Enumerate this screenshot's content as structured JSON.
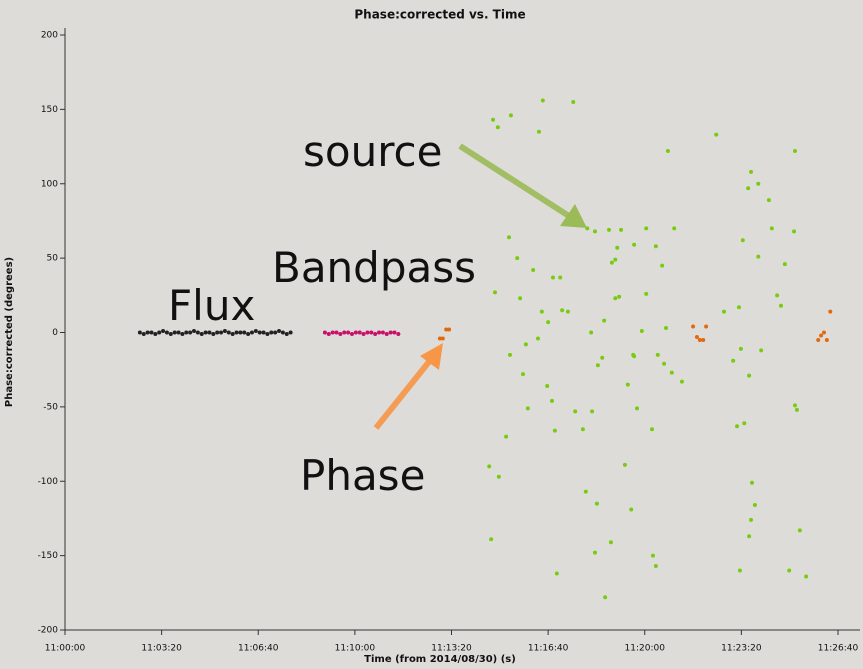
{
  "chart_data": {
    "type": "scatter",
    "title": "Phase:corrected vs. Time",
    "x_label": "Time (from 2014/08/30) (s)",
    "y_label": "Phase:corrected (degrees)",
    "xlim": [
      0,
      1600
    ],
    "ylim": [
      -200,
      200
    ],
    "xticks": [
      {
        "value": 0,
        "label": "11:00:00"
      },
      {
        "value": 200,
        "label": "11:03:20"
      },
      {
        "value": 400,
        "label": "11:06:40"
      },
      {
        "value": 600,
        "label": "11:10:00"
      },
      {
        "value": 800,
        "label": "11:13:20"
      },
      {
        "value": 1000,
        "label": "11:16:40"
      },
      {
        "value": 1200,
        "label": "11:20:00"
      },
      {
        "value": 1400,
        "label": "11:23:20"
      },
      {
        "value": 1600,
        "label": "11:26:40"
      }
    ],
    "yticks": [
      -200,
      -150,
      -100,
      -50,
      0,
      50,
      100,
      150,
      200
    ],
    "series": [
      {
        "name": "Flux",
        "color": "#222222",
        "x": [
          155,
          163,
          171,
          179,
          187,
          195,
          203,
          211,
          219,
          227,
          235,
          243,
          251,
          259,
          267,
          275,
          283,
          291,
          299,
          307,
          315,
          323,
          331,
          339,
          347,
          355,
          363,
          371,
          379,
          387,
          395,
          403,
          411,
          419,
          427,
          435,
          443,
          451,
          459,
          467
        ],
        "values": [
          0,
          -1,
          0,
          0,
          -1,
          0,
          1,
          0,
          -1,
          0,
          0,
          -1,
          0,
          0,
          1,
          0,
          -1,
          0,
          0,
          -1,
          0,
          0,
          1,
          0,
          -1,
          0,
          0,
          0,
          -1,
          0,
          1,
          0,
          0,
          -1,
          0,
          0,
          1,
          0,
          -1,
          0
        ]
      },
      {
        "name": "Bandpass",
        "color": "#c8106a",
        "x": [
          538,
          546,
          554,
          562,
          570,
          578,
          586,
          594,
          602,
          610,
          618,
          626,
          634,
          642,
          650,
          658,
          666,
          674,
          682,
          690
        ],
        "values": [
          0,
          -1,
          0,
          0,
          -1,
          0,
          0,
          -1,
          0,
          0,
          -1,
          0,
          0,
          -1,
          0,
          0,
          -1,
          0,
          0,
          -1
        ]
      },
      {
        "name": "Phase",
        "color": "#e06a10",
        "x": [
          776,
          782,
          789,
          795,
          1300,
          1308,
          1314,
          1321,
          1327,
          1559,
          1565,
          1571,
          1577,
          1584
        ],
        "values": [
          -4,
          -4,
          2,
          2,
          4,
          -3,
          -5,
          -5,
          4,
          -5,
          -2,
          0,
          -5,
          14
        ]
      },
      {
        "name": "source",
        "color": "#77cc11",
        "x": [
          886,
          896,
          923,
          989,
          1052,
          981,
          1081,
          1248,
          1348,
          1414,
          1420,
          1435,
          1457,
          1511,
          1474,
          1435,
          1463,
          1403,
          1482,
          1509,
          1490,
          1395,
          1261,
          1203,
          1151,
          1126,
          1097,
          1132,
          1143,
          1147,
          1178,
          1223,
          1236,
          1244,
          890,
          919,
          936,
          942,
          954,
          1000,
          1029,
          1041,
          1025,
          987,
          969,
          979,
          1010,
          1103,
          1112,
          1116,
          1139,
          1139,
          1203,
          1194,
          1178,
          1091,
          1056,
          998,
          958,
          948,
          921,
          913,
          878,
          898,
          882,
          1014,
          1072,
          1078,
          1101,
          1159,
          1172,
          1176,
          1165,
          1184,
          1215,
          1227,
          1240,
          1256,
          1277,
          1364,
          1383,
          1399,
          1441,
          1416,
          1391,
          1406,
          1422,
          1428,
          1420,
          1416,
          1397,
          1511,
          1515,
          1521,
          1499,
          1534,
          1097,
          1118,
          1018,
          1217,
          1223,
          1130,
          1008,
          1089
        ],
        "values": [
          143,
          138,
          146,
          156,
          155,
          135,
          70,
          122,
          133,
          97,
          108,
          100,
          89,
          122,
          25,
          51,
          70,
          62,
          18,
          68,
          46,
          17,
          70,
          70,
          69,
          69,
          68,
          47,
          57,
          24,
          59,
          58,
          45,
          3,
          27,
          64,
          50,
          23,
          -8,
          7,
          15,
          14,
          37,
          14,
          42,
          -4,
          37,
          -22,
          -17,
          8,
          23,
          49,
          26,
          1,
          -16,
          -53,
          -53,
          -36,
          -51,
          -28,
          -15,
          -70,
          -90,
          -97,
          -139,
          -66,
          -65,
          -107,
          -115,
          -89,
          -119,
          -15,
          -35,
          -51,
          -65,
          -15,
          -21,
          -27,
          -33,
          14,
          -19,
          -11,
          -12,
          -29,
          -63,
          -61,
          -101,
          -116,
          -126,
          -137,
          -160,
          -49,
          -52,
          -133,
          -160,
          -164,
          -148,
          -178,
          -162,
          -150,
          -157,
          -141,
          -46,
          0
        ]
      }
    ]
  }
}
